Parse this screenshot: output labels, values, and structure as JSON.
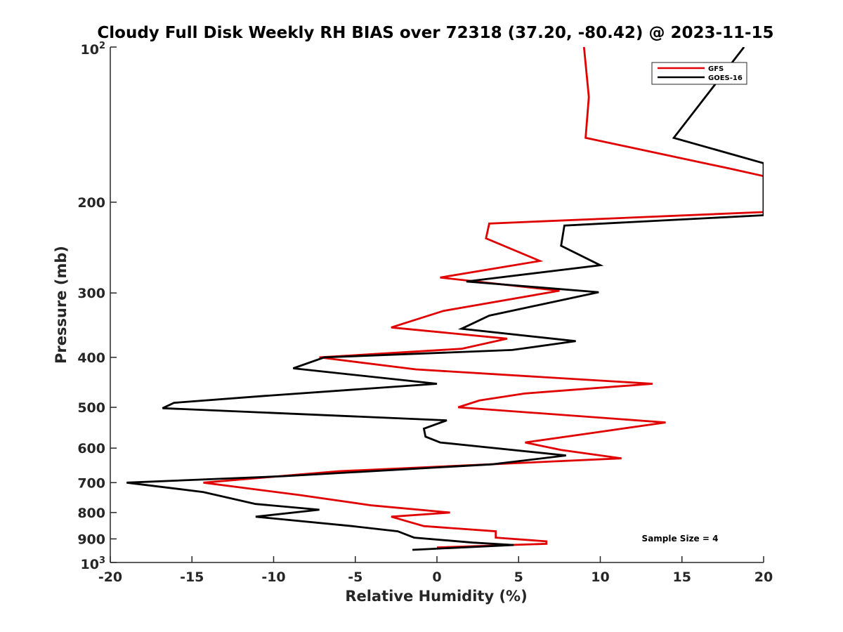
{
  "chart_data": {
    "type": "line",
    "title": "Cloudy Full Disk Weekly RH BIAS over 72318 (37.20, -80.42) @ 2023-11-15",
    "xlabel": "Relative Humidity (%)",
    "ylabel": "Pressure (mb)",
    "xlim": [
      -20,
      20
    ],
    "ylim": [
      100,
      1000
    ],
    "yscale": "log",
    "y_reversed": true,
    "grid": false,
    "legend_position": "top-right",
    "x_ticks": [
      "-20",
      "-15",
      "-10",
      "-5",
      "0",
      "5",
      "10",
      "15",
      "20"
    ],
    "y_ticks_plain": [
      "200",
      "300",
      "400",
      "500",
      "600",
      "700",
      "800",
      "900"
    ],
    "y_tick_top": {
      "base": "10",
      "exp": "2"
    },
    "y_tick_bottom": {
      "base": "10",
      "exp": "3"
    },
    "annotation": "Sample Size = 4",
    "series": [
      {
        "name": "GFS",
        "color": "#e00000",
        "points": [
          [
            9.0,
            100
          ],
          [
            9.3,
            125
          ],
          [
            9.1,
            150
          ],
          [
            17.9,
            172
          ],
          [
            20.0,
            178
          ],
          [
            20.0,
            209
          ],
          [
            3.2,
            220
          ],
          [
            3.0,
            235
          ],
          [
            6.3,
            260
          ],
          [
            0.2,
            280
          ],
          [
            7.5,
            297
          ],
          [
            0.4,
            325
          ],
          [
            -2.8,
            350
          ],
          [
            4.3,
            368
          ],
          [
            1.5,
            385
          ],
          [
            -7.2,
            400
          ],
          [
            -1.3,
            422
          ],
          [
            13.2,
            450
          ],
          [
            5.4,
            470
          ],
          [
            2.6,
            485
          ],
          [
            1.3,
            500
          ],
          [
            14.0,
            535
          ],
          [
            9.6,
            560
          ],
          [
            5.4,
            585
          ],
          [
            7.6,
            605
          ],
          [
            11.3,
            628
          ],
          [
            -6.0,
            665
          ],
          [
            -14.3,
            700
          ],
          [
            -8.4,
            740
          ],
          [
            -4.0,
            775
          ],
          [
            0.8,
            800
          ],
          [
            -2.8,
            815
          ],
          [
            -0.8,
            850
          ],
          [
            3.6,
            870
          ],
          [
            3.6,
            895
          ],
          [
            6.7,
            910
          ],
          [
            6.7,
            920
          ],
          [
            0.0,
            935
          ]
        ]
      },
      {
        "name": "GOES-16",
        "color": "#000000",
        "points": [
          [
            18.8,
            100
          ],
          [
            14.5,
            150
          ],
          [
            20.0,
            168
          ],
          [
            20.0,
            212
          ],
          [
            7.8,
            222
          ],
          [
            7.6,
            243
          ],
          [
            10.0,
            265
          ],
          [
            1.8,
            285
          ],
          [
            9.9,
            299
          ],
          [
            3.2,
            332
          ],
          [
            1.5,
            352
          ],
          [
            8.5,
            372
          ],
          [
            4.6,
            387
          ],
          [
            -6.9,
            400
          ],
          [
            -8.8,
            420
          ],
          [
            0.0,
            450
          ],
          [
            -10.5,
            475
          ],
          [
            -16.1,
            490
          ],
          [
            -16.8,
            502
          ],
          [
            0.6,
            530
          ],
          [
            -0.8,
            550
          ],
          [
            -0.7,
            570
          ],
          [
            0.2,
            585
          ],
          [
            7.9,
            620
          ],
          [
            3.4,
            645
          ],
          [
            -9.4,
            680
          ],
          [
            -19.0,
            700
          ],
          [
            -14.3,
            730
          ],
          [
            -11.1,
            770
          ],
          [
            -7.2,
            790
          ],
          [
            -11.1,
            815
          ],
          [
            -5.2,
            850
          ],
          [
            -2.4,
            870
          ],
          [
            -1.4,
            895
          ],
          [
            2.2,
            915
          ],
          [
            4.7,
            925
          ],
          [
            -1.5,
            945
          ]
        ]
      }
    ]
  }
}
